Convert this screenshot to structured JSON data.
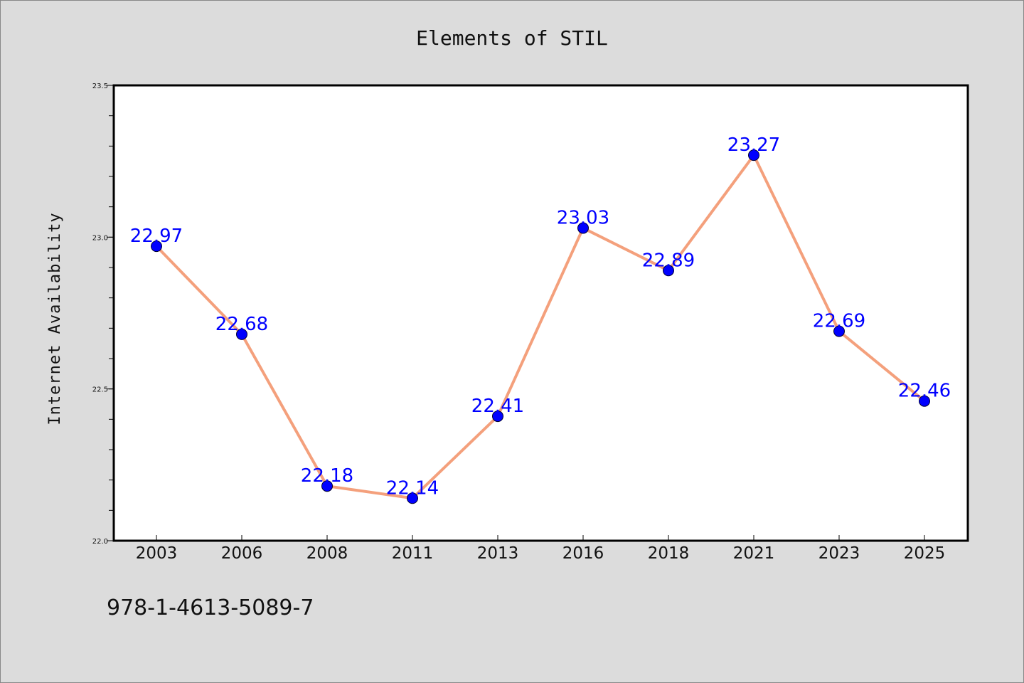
{
  "chart_data": {
    "type": "line",
    "title": "Elements of STIL",
    "xlabel": "",
    "ylabel": "Internet Availability",
    "categories": [
      "2003",
      "2006",
      "2008",
      "2011",
      "2013",
      "2016",
      "2018",
      "2021",
      "2023",
      "2025"
    ],
    "series": [
      {
        "values": [
          22.97,
          22.68,
          22.18,
          22.14,
          22.41,
          23.03,
          22.89,
          23.27,
          22.69,
          22.46
        ],
        "data_labels": [
          "22.97",
          "22.68",
          "22.18",
          "22.14",
          "22.41",
          "23.03",
          "22.89",
          "23.27",
          "22.69",
          "22.46"
        ],
        "line_color": "#f4a07c",
        "marker_color": "#0000ff"
      }
    ],
    "ylim": [
      22.0,
      23.5
    ],
    "yticks": [
      "22.0",
      "22.5",
      "23.0",
      "23.5"
    ],
    "grid": false,
    "legend": "none"
  },
  "footer": {
    "isbn": "978-1-4613-5089-7"
  },
  "colors": {
    "background": "#dcdcdc",
    "plot_area": "#ffffff",
    "line": "#f4a07c",
    "marker": "#0000ff",
    "data_label": "#0000ff"
  }
}
